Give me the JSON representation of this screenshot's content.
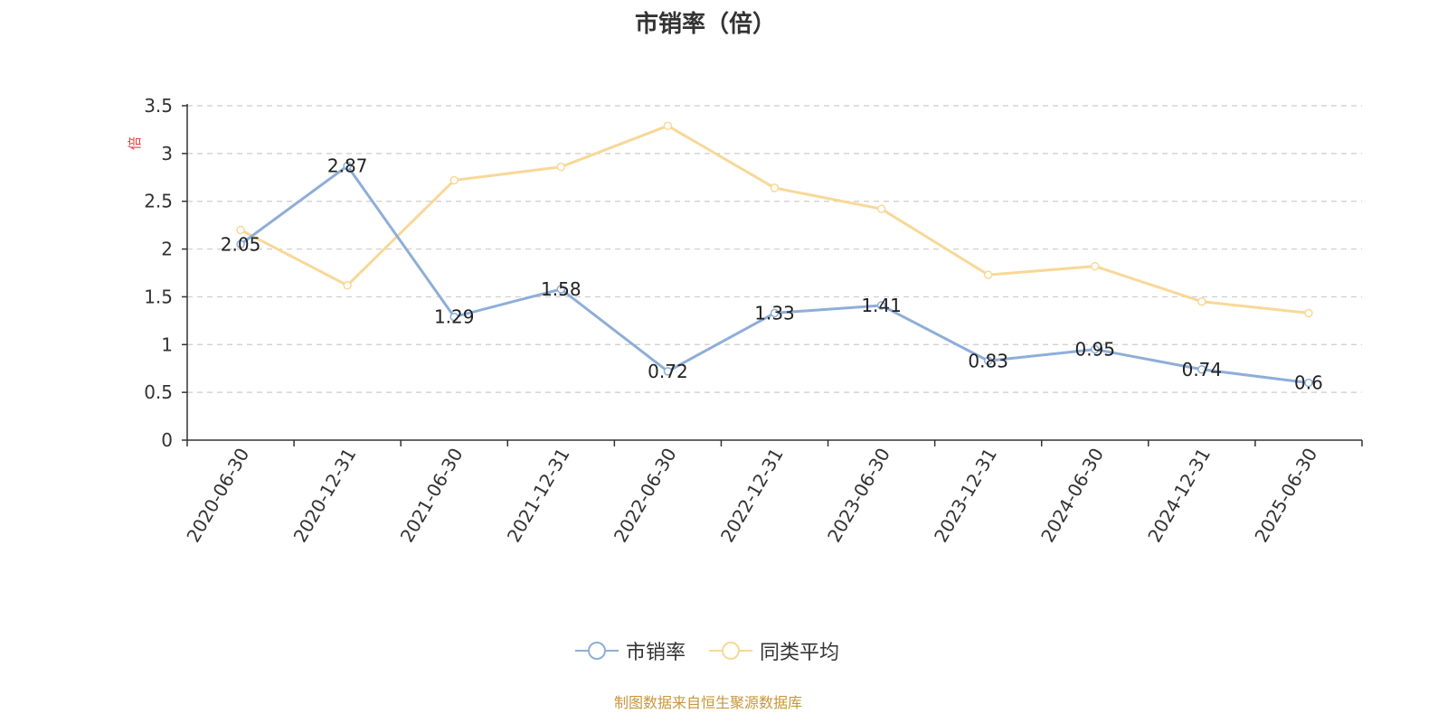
{
  "chart_data": {
    "type": "line",
    "title": "市销率（倍）",
    "ylabel": "倍",
    "xlabel": "",
    "ylim": [
      0,
      3.5
    ],
    "yticks": [
      "0",
      "0.5",
      "1",
      "1.5",
      "2",
      "2.5",
      "3",
      "3.5"
    ],
    "ytick_values": [
      0,
      0.5,
      1,
      1.5,
      2,
      2.5,
      3,
      3.5
    ],
    "categories": [
      "2020-06-30",
      "2020-12-31",
      "2021-06-30",
      "2021-12-31",
      "2022-06-30",
      "2022-12-31",
      "2023-06-30",
      "2023-12-31",
      "2024-06-30",
      "2024-12-31",
      "2025-06-30"
    ],
    "grid": true,
    "legend_position": "bottom-center",
    "series": [
      {
        "name": "市销率",
        "color": "#8eaed8",
        "values": [
          2.05,
          2.87,
          1.29,
          1.58,
          0.72,
          1.33,
          1.41,
          0.83,
          0.95,
          0.74,
          0.6
        ],
        "data_labels": [
          "2.05",
          "2.87",
          "1.29",
          "1.58",
          "0.72",
          "1.33",
          "1.41",
          "0.83",
          "0.95",
          "0.74",
          "0.6"
        ]
      },
      {
        "name": "同类平均",
        "color": "#f8d897",
        "values": [
          2.2,
          1.62,
          2.72,
          2.86,
          3.29,
          2.64,
          2.42,
          1.73,
          1.82,
          1.45,
          1.33
        ]
      }
    ]
  },
  "footer": {
    "source": "制图数据来自恒生聚源数据库"
  }
}
